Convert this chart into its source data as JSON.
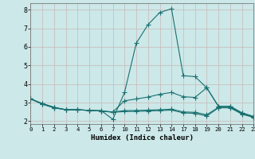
{
  "xlabel": "Humidex (Indice chaleur)",
  "bg_color": "#cce8e8",
  "grid_color": "#c8b8b8",
  "line_color": "#1a7070",
  "lines": [
    {
      "x": [
        0,
        1,
        2,
        3,
        4,
        5,
        6,
        7,
        10,
        11,
        12,
        13,
        14,
        17,
        18,
        19,
        20,
        21,
        22,
        23
      ],
      "y": [
        3.2,
        2.95,
        2.75,
        2.62,
        2.62,
        2.58,
        2.58,
        2.1,
        3.55,
        6.2,
        7.2,
        7.85,
        8.05,
        4.45,
        4.4,
        3.8,
        2.8,
        2.8,
        2.45,
        2.25
      ]
    },
    {
      "x": [
        0,
        1,
        2,
        3,
        4,
        5,
        6,
        7,
        10,
        11,
        12,
        13,
        14,
        17,
        18,
        19,
        20,
        21,
        22,
        23
      ],
      "y": [
        3.2,
        2.95,
        2.75,
        2.62,
        2.62,
        2.58,
        2.55,
        2.5,
        3.1,
        3.2,
        3.3,
        3.45,
        3.55,
        3.32,
        3.28,
        3.8,
        2.8,
        2.8,
        2.45,
        2.25
      ]
    },
    {
      "x": [
        0,
        1,
        2,
        3,
        4,
        5,
        6,
        7,
        10,
        11,
        12,
        13,
        14,
        17,
        18,
        19,
        20,
        21,
        22,
        23
      ],
      "y": [
        3.2,
        2.92,
        2.72,
        2.62,
        2.62,
        2.58,
        2.55,
        2.5,
        2.57,
        2.58,
        2.6,
        2.62,
        2.65,
        2.5,
        2.48,
        2.35,
        2.75,
        2.75,
        2.42,
        2.22
      ]
    },
    {
      "x": [
        0,
        1,
        2,
        3,
        4,
        5,
        6,
        7,
        10,
        11,
        12,
        13,
        14,
        17,
        18,
        19,
        20,
        21,
        22,
        23
      ],
      "y": [
        3.2,
        2.92,
        2.72,
        2.62,
        2.62,
        2.58,
        2.55,
        2.48,
        2.52,
        2.53,
        2.55,
        2.57,
        2.6,
        2.45,
        2.42,
        2.28,
        2.72,
        2.72,
        2.38,
        2.2
      ]
    }
  ],
  "xlim": [
    0,
    23
  ],
  "ylim": [
    1.85,
    8.35
  ],
  "xticks": [
    0,
    1,
    2,
    3,
    4,
    5,
    6,
    7,
    10,
    11,
    12,
    13,
    14,
    17,
    18,
    19,
    20,
    21,
    22,
    23
  ],
  "yticks": [
    2,
    3,
    4,
    5,
    6,
    7,
    8
  ],
  "markersize": 2.0,
  "linewidth": 0.8
}
